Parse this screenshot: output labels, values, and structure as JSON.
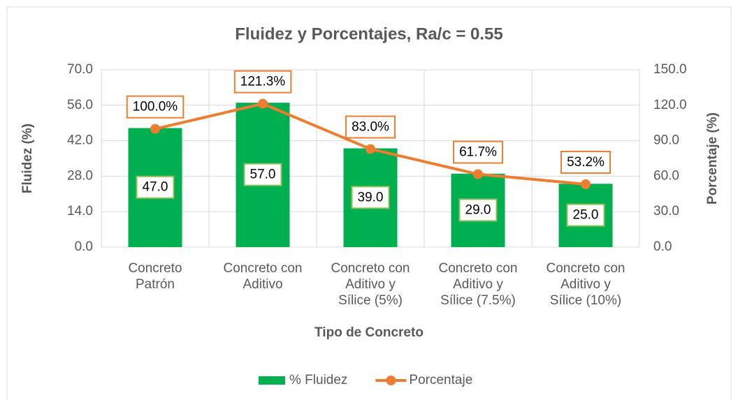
{
  "chart_data": {
    "type": "bar-line",
    "title": "Fluidez y Porcentajes, Ra/c = 0.55",
    "x_label": "Tipo de Concreto",
    "y_label": "Fluidez (%)",
    "y2_label": "Porcentaje (%)",
    "categories": [
      "Concreto\nPatrón",
      "Concreto con\nAditivo",
      "Concreto con\nAditivo y\nSílice (5%)",
      "Concreto con\nAditivo y\nSílice (7.5%)",
      "Concreto con\nAditivo y\nSílice (10%)"
    ],
    "series": [
      {
        "name": "% Fluidez",
        "type": "bar",
        "color": "#00b050",
        "values": [
          47,
          57,
          39,
          29,
          25
        ],
        "value_labels": [
          "47.0",
          "57.0",
          "39.0",
          "29.0",
          "25.0"
        ]
      },
      {
        "name": "Porcentaje",
        "type": "line",
        "axis": "y2",
        "color": "#ed7d31",
        "values": [
          100.0,
          121.3,
          83.0,
          61.7,
          53.2
        ],
        "value_labels": [
          "100.0%",
          "121.3%",
          "83.0%",
          "61.7%",
          "53.2%"
        ]
      }
    ],
    "ylim": [
      0,
      70
    ],
    "yticks": [
      {
        "value": 0,
        "label": "0.0"
      },
      {
        "value": 14,
        "label": "14.0"
      },
      {
        "value": 28,
        "label": "28.0"
      },
      {
        "value": 42,
        "label": "42.0"
      },
      {
        "value": 56,
        "label": "56.0"
      },
      {
        "value": 70,
        "label": "70.0"
      }
    ],
    "y2lim": [
      0,
      150
    ],
    "y2ticks": [
      {
        "value": 0,
        "label": "0.0"
      },
      {
        "value": 30,
        "label": "30.0"
      },
      {
        "value": 60,
        "label": "60.0"
      },
      {
        "value": 90,
        "label": "90.0"
      },
      {
        "value": 120,
        "label": "120.0"
      },
      {
        "value": 150,
        "label": "150.0"
      }
    ],
    "grid": true,
    "legend": "bottom"
  }
}
